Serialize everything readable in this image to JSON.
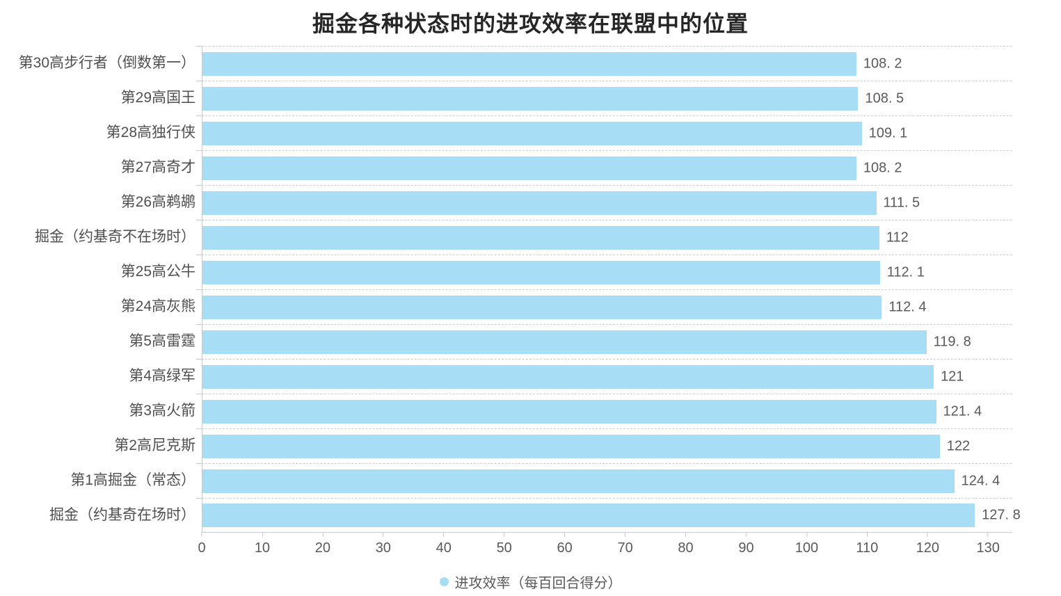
{
  "page": {
    "background": "#ffffff"
  },
  "chart_data": {
    "type": "bar",
    "orientation": "horizontal",
    "title": "掘金各种状态时的进攻效率在联盟中的位置",
    "legend": "进攻效率（每百回合得分）",
    "legend_position": "bottom-center",
    "categories": [
      "第30高步行者（倒数第一）",
      "第29高国王",
      "第28高独行侠",
      "第27高奇才",
      "第26高鹈鹕",
      "掘金（约基奇不在场时）",
      "第25高公牛",
      "第24高灰熊",
      "第5高雷霆",
      "第4高绿军",
      "第3高火箭",
      "第2高尼克斯",
      "第1高掘金（常态）",
      "掘金（约基奇在场时）"
    ],
    "values": [
      108.2,
      108.5,
      109.1,
      108.2,
      111.5,
      112,
      112.1,
      112.4,
      119.8,
      121,
      121.4,
      122,
      124.4,
      127.8
    ],
    "value_labels": [
      "108. 2",
      "108. 5",
      "109. 1",
      "108. 2",
      "111. 5",
      "112",
      "112. 1",
      "112. 4",
      "119. 8",
      "121",
      "121. 4",
      "122",
      "124. 4",
      "127. 8"
    ],
    "x_ticks": [
      0,
      10,
      20,
      30,
      40,
      50,
      60,
      70,
      80,
      90,
      100,
      110,
      120,
      130
    ],
    "xlim": [
      0,
      134
    ],
    "grid": "dashed horizontal lines at category boundaries",
    "colors": {
      "bar": "#A7DDF5",
      "grid_line": "#CCCCCC",
      "axis_line": "#C9C9C9",
      "title_text": "#262626",
      "category_text": "#4F4F4F",
      "value_text": "#595959"
    }
  }
}
